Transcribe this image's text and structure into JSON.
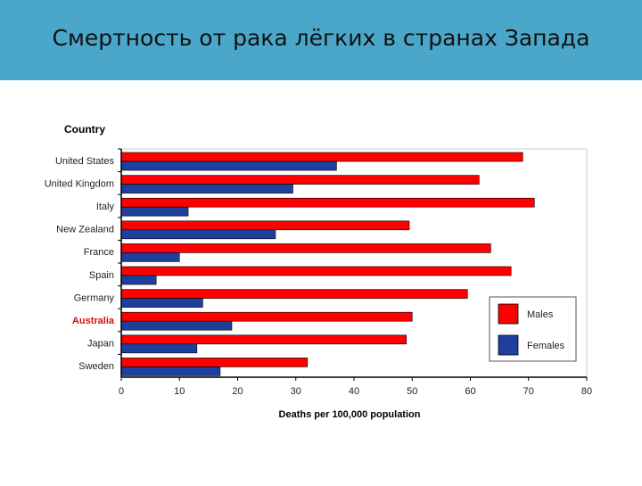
{
  "slide": {
    "title": "Смертность от рака лёгких в странах Запада"
  },
  "chart_data": {
    "type": "bar",
    "orientation": "horizontal",
    "title": "",
    "ylabel": "Country",
    "xlabel": "Deaths per 100,000 population",
    "categories": [
      "United States",
      "United Kingdom",
      "Italy",
      "New Zealand",
      "France",
      "Spain",
      "Germany",
      "Australia",
      "Japan",
      "Sweden"
    ],
    "highlight_category": "Australia",
    "series": [
      {
        "name": "Males",
        "color": "#ff0000",
        "values": [
          69,
          61.5,
          71,
          49.5,
          63.5,
          67,
          59.5,
          50,
          49,
          32
        ]
      },
      {
        "name": "Females",
        "color": "#1f3f9f",
        "values": [
          37,
          29.5,
          11.5,
          26.5,
          10,
          6,
          14,
          19,
          13,
          17
        ]
      }
    ],
    "xlim": [
      0,
      80
    ],
    "xticks": [
      0,
      10,
      20,
      30,
      40,
      50,
      60,
      70,
      80
    ],
    "grid": false,
    "legend_position": "right"
  }
}
